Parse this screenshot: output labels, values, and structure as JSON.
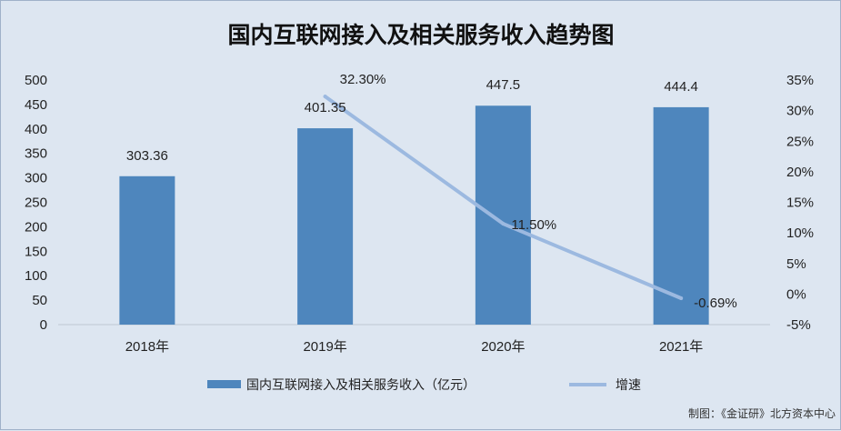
{
  "chart_data": {
    "type": "bar",
    "title": "国内互联网接入及相关服务收入趋势图",
    "categories": [
      "2018年",
      "2019年",
      "2020年",
      "2021年"
    ],
    "series": [
      {
        "name": "国内互联网接入及相关服务收入（亿元）",
        "type": "bar",
        "axis": "left",
        "values": [
          303.36,
          401.35,
          447.5,
          444.4
        ],
        "labels": [
          "303.36",
          "401.35",
          "447.5",
          "444.4"
        ],
        "color": "#4e86bd"
      },
      {
        "name": "增速",
        "type": "line",
        "axis": "right",
        "values": [
          null,
          32.3,
          11.5,
          -0.69
        ],
        "labels": [
          "",
          "32.30%",
          "11.50%",
          "-0.69%"
        ],
        "color": "#9cb9e0"
      }
    ],
    "y_left": {
      "min": 0,
      "max": 500,
      "ticks": [
        0,
        50,
        100,
        150,
        200,
        250,
        300,
        350,
        400,
        450,
        500
      ],
      "tick_labels": [
        "0",
        "50",
        "100",
        "150",
        "200",
        "250",
        "300",
        "350",
        "400",
        "450",
        "500"
      ]
    },
    "y_right": {
      "min": -5,
      "max": 35,
      "ticks": [
        -5,
        0,
        5,
        10,
        15,
        20,
        25,
        30,
        35
      ],
      "tick_labels": [
        "-5%",
        "0%",
        "5%",
        "10%",
        "15%",
        "20%",
        "25%",
        "30%",
        "35%"
      ]
    },
    "grid": false,
    "legend": "bottom",
    "background": "#dde6f1"
  },
  "source_note": "制图：《金证研》北方资本中心"
}
